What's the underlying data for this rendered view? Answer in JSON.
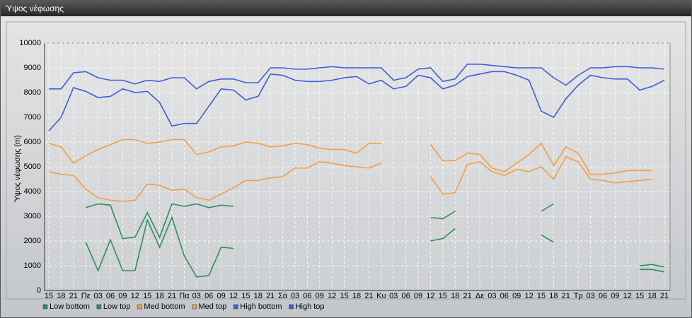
{
  "window": {
    "title": "Ύψος νέφωσης"
  },
  "chart_data": {
    "type": "line",
    "y_label": "Ύψος νέφωσης (m)",
    "categories": [
      "15",
      "18",
      "21",
      "Πε",
      "03",
      "06",
      "09",
      "12",
      "15",
      "18",
      "21",
      "Πα",
      "03",
      "06",
      "09",
      "12",
      "15",
      "18",
      "21",
      "Σά",
      "03",
      "06",
      "09",
      "12",
      "15",
      "18",
      "21",
      "Κυ",
      "03",
      "06",
      "09",
      "12",
      "15",
      "18",
      "21",
      "Δε",
      "03",
      "06",
      "09",
      "12",
      "15",
      "18",
      "21",
      "Τρ",
      "03",
      "06",
      "09",
      "12",
      "15",
      "18",
      "21"
    ],
    "ylim": [
      0,
      10000
    ],
    "yticks": [
      0,
      1000,
      2000,
      3000,
      4000,
      5000,
      6000,
      7000,
      8000,
      9000,
      10000
    ],
    "grid": true,
    "series": [
      {
        "name": "Low bottom",
        "color": "#2f8f5b",
        "values": [
          null,
          null,
          null,
          1950,
          800,
          2050,
          800,
          800,
          2850,
          1750,
          2950,
          1400,
          550,
          600,
          1750,
          1700,
          null,
          null,
          null,
          null,
          null,
          null,
          null,
          null,
          null,
          null,
          null,
          null,
          null,
          null,
          null,
          2000,
          2100,
          2500,
          null,
          null,
          null,
          null,
          null,
          null,
          2250,
          1950,
          null,
          null,
          null,
          null,
          null,
          null,
          850,
          850,
          750
        ]
      },
      {
        "name": "Low top",
        "color": "#2f8f5b",
        "values": [
          null,
          null,
          null,
          3350,
          3500,
          3450,
          2100,
          2150,
          3150,
          2150,
          3500,
          3400,
          3500,
          3350,
          3450,
          3400,
          null,
          null,
          null,
          null,
          null,
          null,
          null,
          null,
          null,
          null,
          null,
          null,
          null,
          null,
          null,
          2950,
          2900,
          3200,
          null,
          null,
          null,
          null,
          null,
          null,
          3200,
          3500,
          null,
          null,
          null,
          null,
          null,
          null,
          1000,
          1050,
          950
        ]
      },
      {
        "name": "Med bottom",
        "color": "#f0a044",
        "values": [
          4800,
          4700,
          4650,
          4100,
          3750,
          3650,
          3600,
          3650,
          4300,
          4250,
          4050,
          4100,
          3750,
          3650,
          3900,
          4150,
          4450,
          4450,
          4550,
          4600,
          4950,
          4950,
          5200,
          5150,
          5050,
          5000,
          4950,
          5150,
          null,
          null,
          null,
          4600,
          3900,
          3950,
          5100,
          5200,
          4800,
          4650,
          4900,
          4800,
          5000,
          4500,
          5400,
          5200,
          4500,
          4450,
          4350,
          4400,
          4450,
          4500,
          null
        ]
      },
      {
        "name": "Med top",
        "color": "#f0a044",
        "values": [
          5950,
          5800,
          5150,
          5450,
          5700,
          5900,
          6100,
          6100,
          5950,
          6000,
          6100,
          6100,
          5500,
          5600,
          5800,
          5850,
          6000,
          5950,
          5800,
          5850,
          5950,
          5900,
          5750,
          5700,
          5700,
          5550,
          5950,
          5950,
          null,
          null,
          null,
          5900,
          5250,
          5250,
          5550,
          5500,
          4950,
          4800,
          5150,
          5500,
          5950,
          5050,
          5800,
          5550,
          4700,
          4700,
          4750,
          4850,
          4850,
          4850,
          null
        ]
      },
      {
        "name": "High bottom",
        "color": "#3d5fd6",
        "values": [
          6450,
          7000,
          8200,
          8050,
          7800,
          7850,
          8150,
          8000,
          8050,
          7600,
          6650,
          6750,
          6750,
          7450,
          8150,
          8100,
          7700,
          7850,
          8750,
          8700,
          8500,
          8450,
          8450,
          8500,
          8600,
          8650,
          8350,
          8500,
          8150,
          8250,
          8700,
          8600,
          8150,
          8300,
          8650,
          8750,
          8850,
          8850,
          8700,
          8500,
          7250,
          7000,
          7750,
          8300,
          8700,
          8600,
          8550,
          8550,
          8100,
          8250,
          8500
        ]
      },
      {
        "name": "High top",
        "color": "#3d5fd6",
        "values": [
          8150,
          8150,
          8800,
          8850,
          8600,
          8500,
          8500,
          8350,
          8500,
          8450,
          8600,
          8600,
          8150,
          8450,
          8550,
          8550,
          8400,
          8400,
          9000,
          9000,
          8950,
          8950,
          9000,
          9050,
          9000,
          9000,
          9000,
          9000,
          8500,
          8600,
          8950,
          9000,
          8450,
          8550,
          9150,
          9150,
          9100,
          9050,
          9000,
          9000,
          9000,
          8600,
          8300,
          8700,
          9000,
          9000,
          9050,
          9050,
          9000,
          9000,
          8950
        ]
      }
    ]
  }
}
